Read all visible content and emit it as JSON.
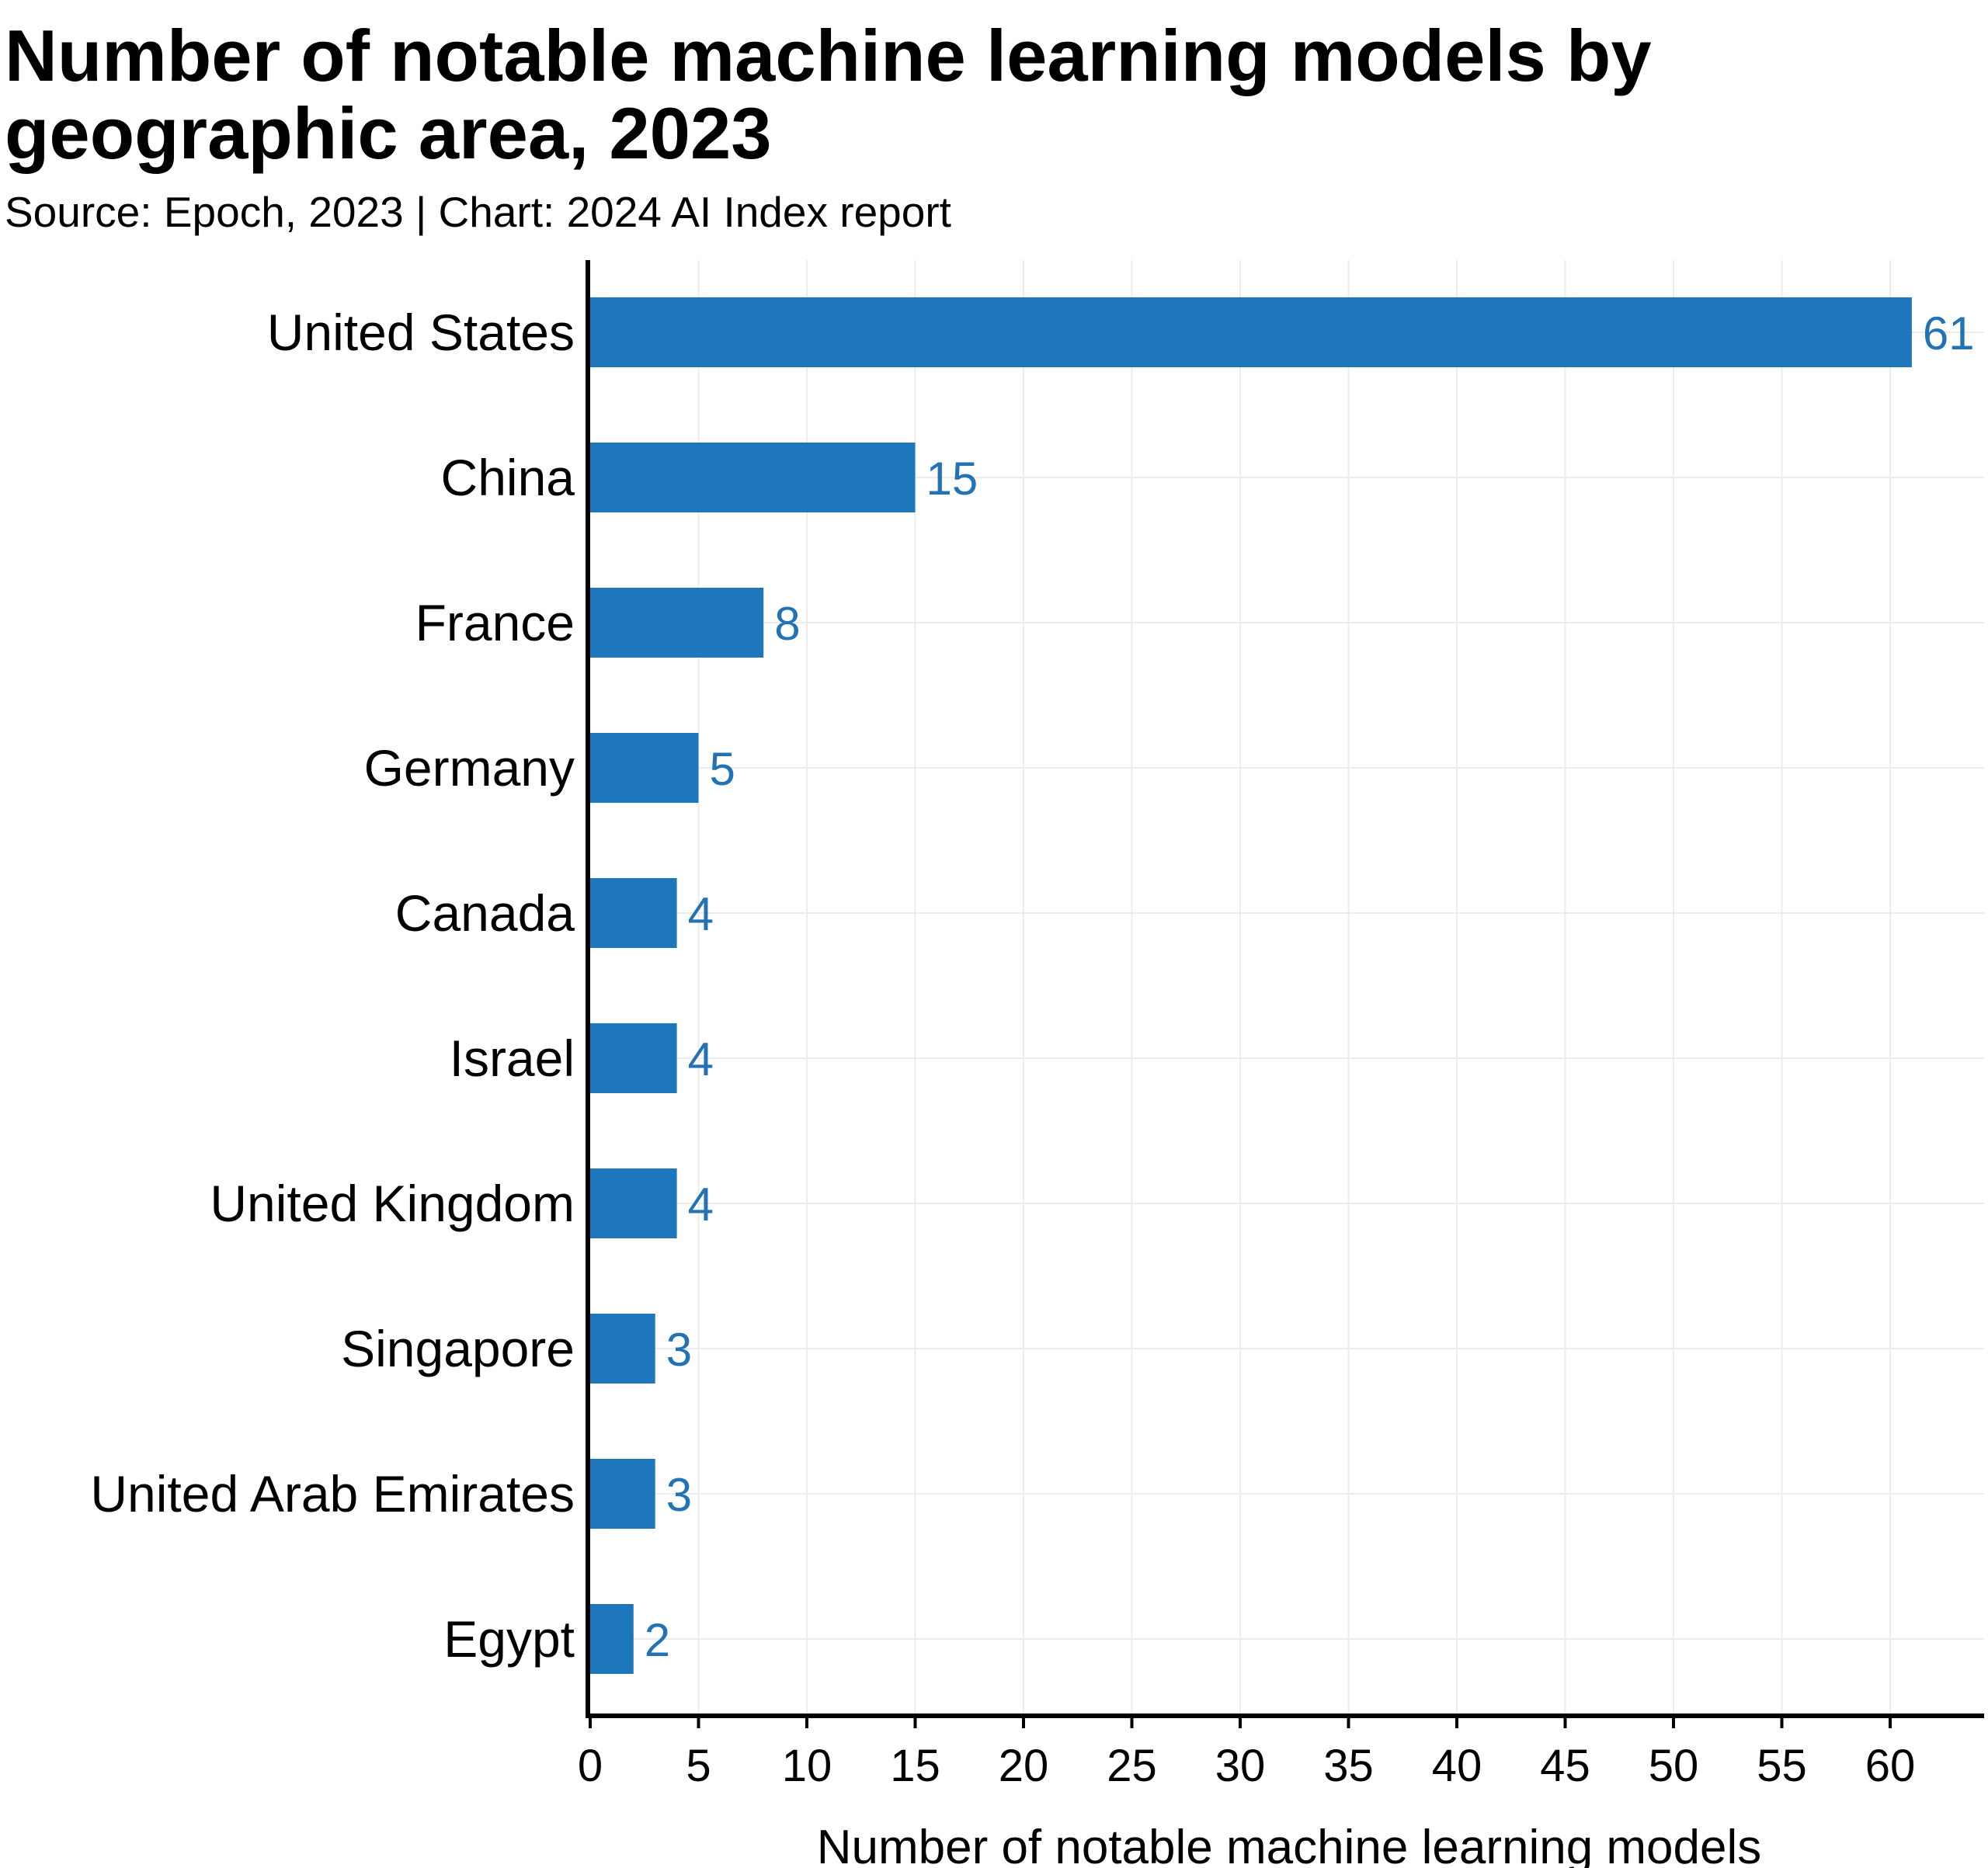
{
  "title": "Number of notable machine learning models by geographic area, 2023",
  "subtitle": "Source: Epoch, 2023 | Chart: 2024 AI Index report",
  "bar_color": "#1f77bb",
  "label_color": "#2272b4",
  "chart_data": {
    "type": "bar",
    "orientation": "horizontal",
    "categories": [
      "United States",
      "China",
      "France",
      "Germany",
      "Canada",
      "Israel",
      "United Kingdom",
      "Singapore",
      "United Arab Emirates",
      "Egypt"
    ],
    "values": [
      61,
      15,
      8,
      5,
      4,
      4,
      4,
      3,
      3,
      2
    ],
    "xlabel": "Number of notable machine learning models",
    "ylabel": "",
    "xlim": [
      0,
      64
    ],
    "xticks": [
      0,
      5,
      10,
      15,
      20,
      25,
      30,
      35,
      40,
      45,
      50,
      55,
      60
    ],
    "grid": true,
    "legend": "none"
  }
}
